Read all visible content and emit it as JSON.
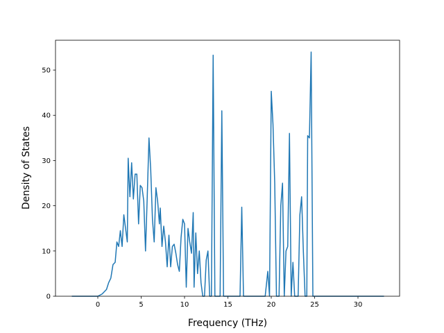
{
  "chart_data": {
    "type": "line",
    "xlabel": "Frequency (THz)",
    "ylabel": "Density of States",
    "x": [
      -3,
      0,
      0.5,
      1,
      1.25,
      1.5,
      1.75,
      2,
      2.2,
      2.4,
      2.6,
      2.8,
      3,
      3.2,
      3.4,
      3.5,
      3.7,
      3.9,
      4.1,
      4.3,
      4.5,
      4.7,
      4.9,
      5.1,
      5.3,
      5.5,
      5.7,
      5.9,
      6.1,
      6.3,
      6.5,
      6.7,
      6.9,
      7.1,
      7.2,
      7.4,
      7.6,
      7.8,
      8,
      8.2,
      8.4,
      8.6,
      8.8,
      9,
      9.2,
      9.4,
      9.6,
      9.8,
      10,
      10.2,
      10.4,
      10.6,
      10.8,
      11,
      11.1,
      11.3,
      11.5,
      11.7,
      11.9,
      12.1,
      12.3,
      12.5,
      12.7,
      12.9,
      13.1,
      13.3,
      13.5,
      14.1,
      14.3,
      14.5,
      16.4,
      16.6,
      16.8,
      19.3,
      19.6,
      19.8,
      20,
      20.2,
      20.4,
      20.6,
      20.9,
      21.1,
      21.3,
      21.5,
      21.7,
      21.9,
      22.1,
      22.3,
      22.5,
      22.7,
      23.1,
      23.3,
      23.5,
      23.7,
      23.9,
      24.1,
      24.2,
      24.4,
      24.6,
      24.8,
      33
    ],
    "series": [
      {
        "color": "#1f77b4",
        "values": [
          0,
          0,
          0.5,
          1.5,
          3,
          4,
          7,
          7.5,
          12,
          11,
          14.5,
          11,
          18,
          15,
          12,
          30.5,
          22,
          29.5,
          21.5,
          27,
          27,
          16,
          24.5,
          24,
          21,
          10,
          22,
          35,
          28,
          17,
          12,
          24,
          21,
          16,
          19.5,
          11,
          15.5,
          12,
          6.5,
          13.5,
          6.5,
          11,
          11.5,
          9.5,
          7,
          5.5,
          13,
          17,
          16,
          2,
          15,
          12,
          9.5,
          18.5,
          2,
          14,
          5,
          10,
          3,
          0,
          0,
          8,
          10,
          0,
          0,
          53.3,
          0,
          0,
          41,
          0,
          0,
          19.7,
          0,
          0,
          5.5,
          0,
          45.3,
          38,
          25,
          0,
          0,
          20,
          25,
          0,
          10,
          11,
          36,
          0,
          7.5,
          0,
          0,
          18,
          22,
          10,
          0,
          0,
          35.5,
          35,
          54,
          0,
          0
        ]
      }
    ],
    "xlim": [
      -4.88,
      34.8
    ],
    "ylim": [
      0,
      56.6
    ],
    "xticks": [
      0,
      5,
      10,
      15,
      20,
      25,
      30
    ],
    "yticks": [
      0,
      10,
      20,
      30,
      40,
      50
    ]
  }
}
